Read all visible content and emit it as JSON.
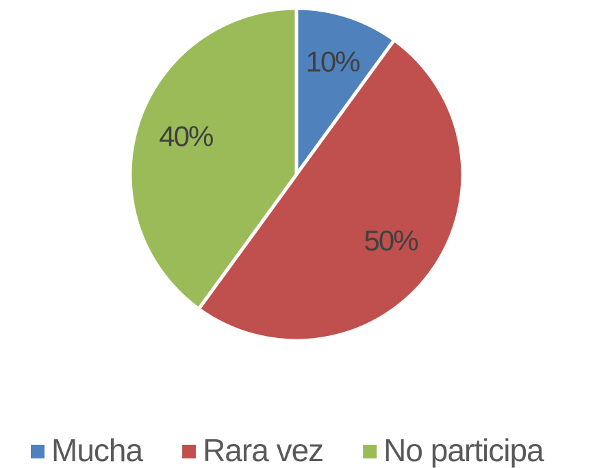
{
  "chart_data": {
    "type": "pie",
    "categories": [
      "Mucha",
      "Rara vez",
      "No participa"
    ],
    "values": [
      10,
      50,
      40
    ],
    "value_labels": [
      "10%",
      "50%",
      "40%"
    ],
    "colors": [
      "#4f81bd",
      "#c0504d",
      "#9bbb59"
    ],
    "legend": "bottom"
  }
}
